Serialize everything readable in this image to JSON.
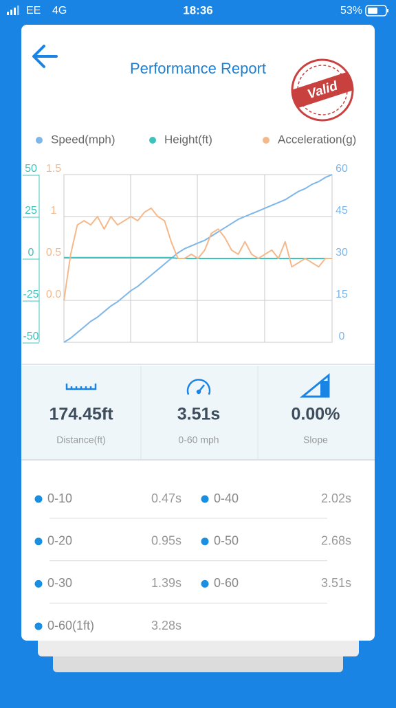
{
  "status_bar": {
    "carrier": "EE",
    "network": "4G",
    "time": "18:36",
    "battery": "53%"
  },
  "header": {
    "title": "Performance Report",
    "stamp": "Valid"
  },
  "chart_data": {
    "type": "line",
    "series": [
      {
        "name": "Speed(mph)",
        "color": "#7db6e8",
        "axis": "y2",
        "values": [
          0,
          1.5,
          3.5,
          5.5,
          7.5,
          9,
          11,
          13,
          14.5,
          16.5,
          18.5,
          20,
          22,
          24,
          26,
          28,
          30,
          32,
          33.5,
          34.5,
          35.5,
          36.5,
          38,
          39.5,
          41,
          42.5,
          44,
          45,
          46,
          47,
          48,
          49,
          50,
          51,
          52.5,
          54,
          55,
          56.5,
          57.5,
          59,
          60
        ]
      },
      {
        "name": "Height(ft)",
        "color": "#3cc3bd",
        "axis": "y",
        "values": [
          0.5,
          0.5,
          0.5,
          0.5,
          0.5,
          0.5,
          0.5,
          0.5,
          0.5,
          0.5,
          0.5,
          0.5,
          0.5,
          0.5,
          0.5,
          0.5,
          0.5,
          0,
          0,
          0,
          0,
          0,
          0,
          0,
          0,
          0,
          0,
          0,
          0,
          0,
          0,
          0,
          0,
          0,
          0,
          0,
          0,
          0,
          0,
          0,
          0
        ]
      },
      {
        "name": "Acceleration(g)",
        "color": "#f5b88a",
        "axis": "y3",
        "values": [
          0.0,
          0.55,
          0.9,
          0.95,
          0.9,
          1.0,
          0.85,
          1.0,
          0.9,
          0.95,
          1.0,
          0.95,
          1.05,
          1.1,
          1.0,
          0.95,
          0.7,
          0.5,
          0.5,
          0.55,
          0.5,
          0.6,
          0.8,
          0.85,
          0.75,
          0.6,
          0.55,
          0.7,
          0.55,
          0.5,
          0.55,
          0.6,
          0.5,
          0.7,
          0.4,
          0.45,
          0.5,
          0.45,
          0.4,
          0.5,
          0.5
        ]
      }
    ],
    "ylim": [
      -50,
      50
    ],
    "yticks": [
      -50,
      -25,
      0,
      25,
      50
    ],
    "y2lim": [
      0,
      60
    ],
    "y2ticks": [
      0,
      15,
      30,
      45,
      60
    ],
    "y3lim": [
      -0.5,
      1.5
    ],
    "y3ticks": [
      {
        "value": 0,
        "label": "0.0"
      },
      0.5,
      1,
      1.5
    ],
    "grid": true
  },
  "stats": [
    {
      "value": "174.45ft",
      "label": "Distance(ft)"
    },
    {
      "value": "3.51s",
      "label": "0-60 mph"
    },
    {
      "value": "0.00%",
      "label": "Slope"
    }
  ],
  "splits": [
    {
      "label": "0-10",
      "time": "0.47s"
    },
    {
      "label": "0-40",
      "time": "2.02s"
    },
    {
      "label": "0-20",
      "time": "0.95s"
    },
    {
      "label": "0-50",
      "time": "2.68s"
    },
    {
      "label": "0-30",
      "time": "1.39s"
    },
    {
      "label": "0-60",
      "time": "3.51s"
    },
    {
      "label": "0-60(1ft)",
      "time": "3.28s"
    }
  ]
}
